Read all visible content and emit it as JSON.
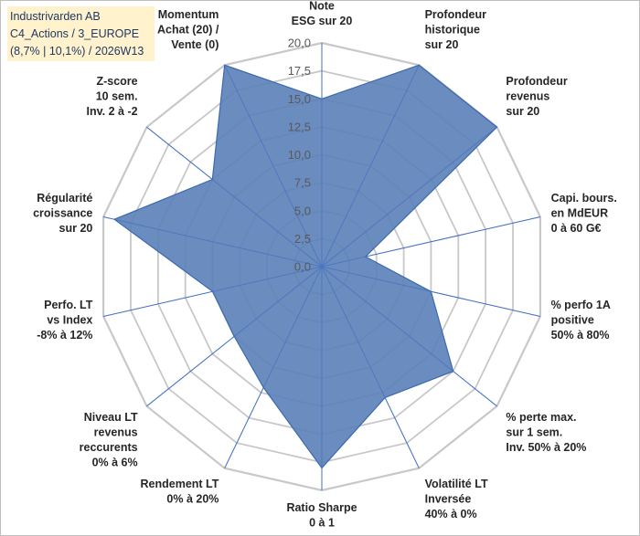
{
  "info_box": {
    "line1": "Industrivarden AB",
    "line2": "C4_Actions / 3_EUROPE",
    "line3": "(8,7% | 10,1%) / 2026W13"
  },
  "colors": {
    "fill": "#5b7fb8",
    "stroke": "#3a6ab0",
    "grid": "#c8c8c8",
    "axis": "#4472c4",
    "info_bg": "#fff2cc",
    "info_text": "#1f3864"
  },
  "chart_data": {
    "type": "radar",
    "title": "",
    "r_min": 0,
    "r_max": 20,
    "r_ticks": [
      "0,0",
      "2,5",
      "5,0",
      "7,5",
      "10,0",
      "12,5",
      "15,0",
      "17,5",
      "20,0"
    ],
    "axes": [
      {
        "label": [
          "Note",
          "ESG sur 20"
        ],
        "value": 15.0
      },
      {
        "label": [
          "Profondeur",
          "historique",
          "sur 20"
        ],
        "value": 20.0
      },
      {
        "label": [
          "Profondeur",
          "revenus",
          "sur 20"
        ],
        "value": 20.0
      },
      {
        "label": [
          "Capi. bours.",
          "en MdEUR",
          "0 à 60 G€"
        ],
        "value": 4.0
      },
      {
        "label": [
          "% perfo 1A",
          "positive",
          "50% à 80%"
        ],
        "value": 10.0
      },
      {
        "label": [
          "% perte max.",
          "sur 1 sem.",
          "Inv. 50% à 20%"
        ],
        "value": 15.0
      },
      {
        "label": [
          "Volatilité LT",
          "Inversée",
          "40% à 0%"
        ],
        "value": 13.0
      },
      {
        "label": [
          "Ratio Sharpe",
          "0 à 1"
        ],
        "value": 18.0
      },
      {
        "label": [
          "Rendement LT",
          "0% à 20%"
        ],
        "value": 12.0
      },
      {
        "label": [
          "Niveau LT",
          "revenus",
          "reccurents",
          "0% à 6%"
        ],
        "value": 10.0
      },
      {
        "label": [
          "Perfo. LT",
          "vs Index",
          "-8% à 12%"
        ],
        "value": 10.0
      },
      {
        "label": [
          "Régularité",
          "croissance",
          "sur 20"
        ],
        "value": 19.0
      },
      {
        "label": [
          "Z-score",
          "10 sem.",
          "Inv. 2 à -2"
        ],
        "value": 12.5
      },
      {
        "label": [
          "Momentum",
          "Achat (20) /",
          "Vente (0)"
        ],
        "value": 20.0
      }
    ]
  }
}
